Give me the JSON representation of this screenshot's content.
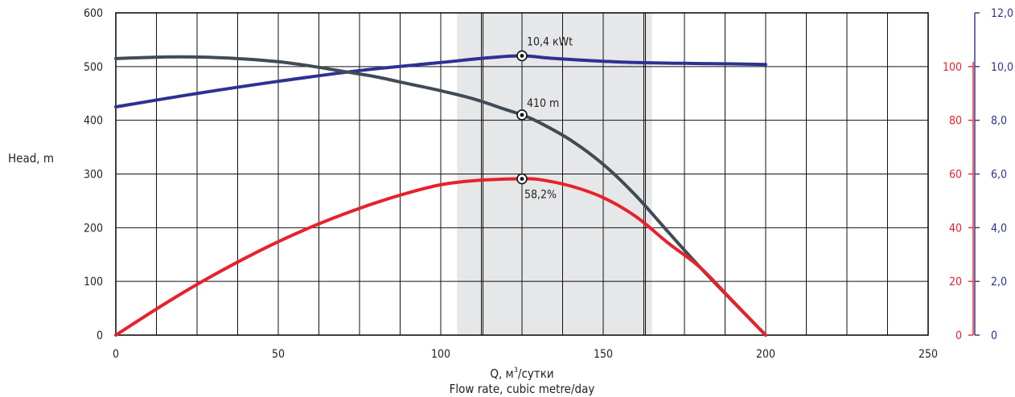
{
  "chart_data": {
    "type": "line",
    "xlabel_ru": "Q, м³/сутки",
    "xlabel_ru_base": "Q, м",
    "xlabel_ru_sup": "3",
    "xlabel_ru_tail": "/сутки",
    "xlabel_en": "Flow rate, cubic metre/day",
    "ylabel": "Head, m",
    "xlim": [
      0,
      250
    ],
    "ylim_head": [
      0,
      600
    ],
    "ylim_efficiency": [
      0,
      120
    ],
    "ylim_power": [
      0,
      12
    ],
    "x_ticks": [
      "0",
      "50",
      "100",
      "150",
      "200",
      "250"
    ],
    "y_ticks_head": [
      "0",
      "100",
      "200",
      "300",
      "400",
      "500",
      "600"
    ],
    "y_ticks_efficiency": [
      "0",
      "20",
      "40",
      "60",
      "80",
      "100"
    ],
    "y_ticks_power": [
      "0",
      "2,0",
      "4,0",
      "6,0",
      "8,0",
      "10,0",
      "12,0"
    ],
    "grid": true,
    "operating_range": [
      105,
      165
    ],
    "inner_band": [
      113,
      163
    ],
    "series": [
      {
        "axis": "head",
        "color": "#414b55",
        "x": [
          0,
          10,
          20,
          30,
          40,
          50,
          60,
          70,
          80,
          90,
          100,
          110,
          120,
          125,
          130,
          140,
          150,
          160,
          170,
          180,
          190,
          200
        ],
        "y": [
          515,
          517,
          518,
          517,
          514,
          509,
          501,
          491,
          481,
          468,
          455,
          440,
          420,
          410,
          397,
          363,
          318,
          260,
          192,
          125,
          62,
          0
        ]
      },
      {
        "axis": "efficiency",
        "color": "#e8212b",
        "x": [
          0,
          10,
          20,
          30,
          40,
          50,
          60,
          70,
          80,
          90,
          100,
          110,
          120,
          125,
          130,
          140,
          150,
          160,
          170,
          180,
          190,
          200
        ],
        "y": [
          0,
          7.8,
          15.3,
          22.3,
          28.8,
          34.8,
          40.2,
          45.0,
          49.3,
          53.0,
          56.0,
          57.5,
          58.1,
          58.2,
          58.0,
          55.5,
          51.2,
          44.2,
          34.3,
          25.0,
          12.5,
          0
        ]
      },
      {
        "axis": "power",
        "color": "#2e3192",
        "x": [
          0,
          25,
          50,
          75,
          100,
          115,
          125,
          135,
          150,
          160,
          175,
          190,
          200
        ],
        "y": [
          8.5,
          9.0,
          9.45,
          9.85,
          10.15,
          10.33,
          10.4,
          10.3,
          10.2,
          10.15,
          10.12,
          10.1,
          10.08
        ]
      }
    ],
    "annotations": [
      {
        "x": 125,
        "axis": "power",
        "y": 10.4,
        "text": "10,4 кWt"
      },
      {
        "x": 125,
        "axis": "head",
        "y": 410,
        "text": "410 m"
      },
      {
        "x": 125,
        "axis": "efficiency",
        "y": 58.2,
        "text": "58,2%"
      }
    ]
  }
}
